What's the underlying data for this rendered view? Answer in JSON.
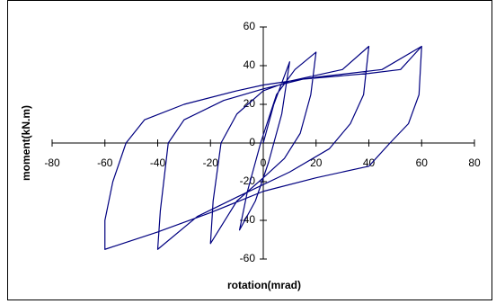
{
  "chart_data": {
    "type": "line",
    "xlabel": "rotation(mrad)",
    "ylabel": "moment(kN.m)",
    "xlim": [
      -80,
      80
    ],
    "xticks": [
      -80,
      -60,
      -40,
      -20,
      0,
      20,
      40,
      60,
      80
    ],
    "ylim": [
      -60,
      60
    ],
    "yticks": [
      -60,
      -40,
      -20,
      0,
      20,
      40,
      60
    ],
    "series": [
      {
        "color": "#000080",
        "x": [
          0,
          4,
          10,
          7,
          2,
          -3,
          -9,
          -6,
          -1,
          5,
          12,
          20,
          18,
          14,
          8,
          0,
          -10,
          -20,
          -19,
          -16,
          -10,
          0,
          10,
          30,
          40,
          38,
          33,
          25,
          10,
          -10,
          -25,
          -40,
          -39,
          -36,
          -30,
          -15,
          0,
          15,
          40,
          52,
          60,
          59,
          55,
          48,
          40,
          20,
          0,
          -20,
          -40,
          -60,
          -60,
          -57,
          -52,
          -45,
          -30,
          -10,
          0,
          20,
          45,
          60
        ],
        "values": [
          0,
          20,
          42,
          15,
          -10,
          -30,
          -45,
          -25,
          0,
          25,
          38,
          47,
          25,
          5,
          -8,
          -18,
          -30,
          -52,
          -30,
          0,
          15,
          27,
          32,
          38,
          50,
          25,
          10,
          -3,
          -15,
          -28,
          -38,
          -55,
          -35,
          0,
          12,
          22,
          28,
          33,
          36,
          38,
          50,
          25,
          10,
          0,
          -12,
          -18,
          -25,
          -36,
          -46,
          -55,
          -40,
          -20,
          0,
          12,
          20,
          27,
          30,
          34,
          38,
          50
        ]
      }
    ]
  }
}
